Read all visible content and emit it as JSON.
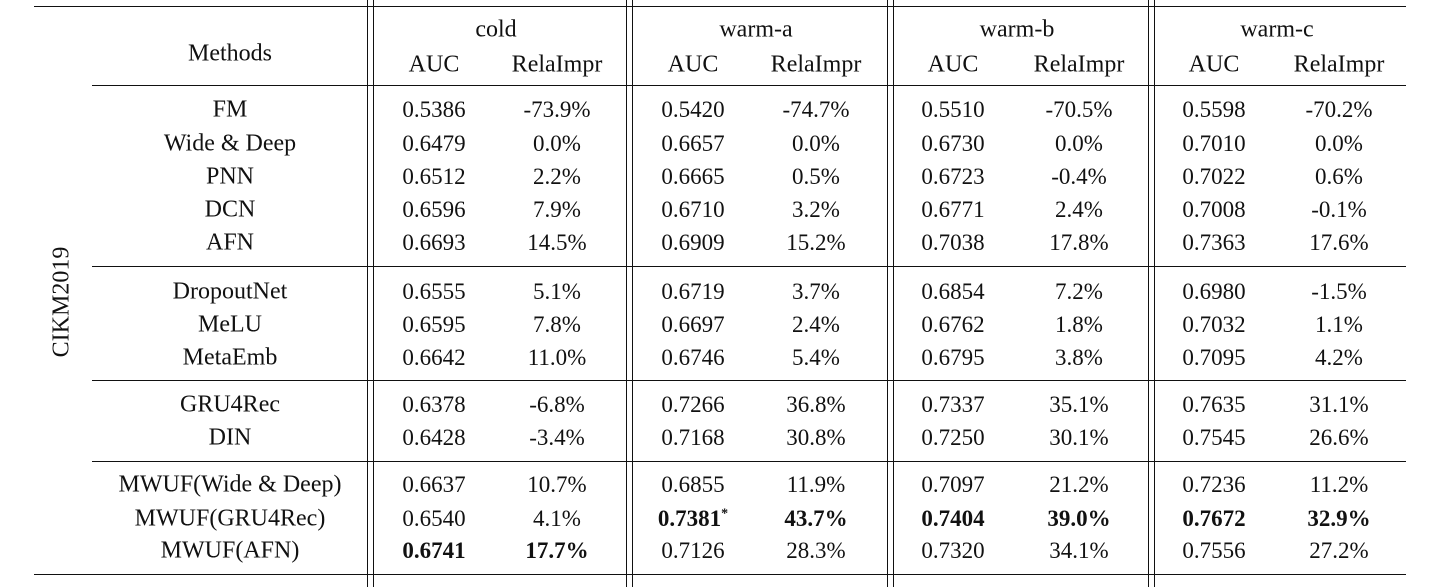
{
  "table": {
    "dataset_label": "CIKM2019",
    "methods_header": "Methods",
    "column_groups": [
      {
        "name": "cold",
        "cols": [
          "AUC",
          "RelaImpr"
        ]
      },
      {
        "name": "warm-a",
        "cols": [
          "AUC",
          "RelaImpr"
        ]
      },
      {
        "name": "warm-b",
        "cols": [
          "AUC",
          "RelaImpr"
        ]
      },
      {
        "name": "warm-c",
        "cols": [
          "AUC",
          "RelaImpr"
        ]
      }
    ],
    "rows": [
      {
        "method": "FM",
        "values": [
          "0.5386",
          "-73.9%",
          "0.5420",
          "-74.7%",
          "0.5510",
          "-70.5%",
          "0.5598",
          "-70.2%"
        ]
      },
      {
        "method": "Wide & Deep",
        "values": [
          "0.6479",
          "0.0%",
          "0.6657",
          "0.0%",
          "0.6730",
          "0.0%",
          "0.7010",
          "0.0%"
        ]
      },
      {
        "method": "PNN",
        "values": [
          "0.6512",
          "2.2%",
          "0.6665",
          "0.5%",
          "0.6723",
          "-0.4%",
          "0.7022",
          "0.6%"
        ]
      },
      {
        "method": "DCN",
        "values": [
          "0.6596",
          "7.9%",
          "0.6710",
          "3.2%",
          "0.6771",
          "2.4%",
          "0.7008",
          "-0.1%"
        ]
      },
      {
        "method": "AFN",
        "values": [
          "0.6693",
          "14.5%",
          "0.6909",
          "15.2%",
          "0.7038",
          "17.8%",
          "0.7363",
          "17.6%"
        ]
      },
      {
        "method": "DropoutNet",
        "values": [
          "0.6555",
          "5.1%",
          "0.6719",
          "3.7%",
          "0.6854",
          "7.2%",
          "0.6980",
          "-1.5%"
        ]
      },
      {
        "method": "MeLU",
        "values": [
          "0.6595",
          "7.8%",
          "0.6697",
          "2.4%",
          "0.6762",
          "1.8%",
          "0.7032",
          "1.1%"
        ]
      },
      {
        "method": "MetaEmb",
        "values": [
          "0.6642",
          "11.0%",
          "0.6746",
          "5.4%",
          "0.6795",
          "3.8%",
          "0.7095",
          "4.2%"
        ]
      },
      {
        "method": "GRU4Rec",
        "values": [
          "0.6378",
          "-6.8%",
          "0.7266",
          "36.8%",
          "0.7337",
          "35.1%",
          "0.7635",
          "31.1%"
        ]
      },
      {
        "method": "DIN",
        "values": [
          "0.6428",
          "-3.4%",
          "0.7168",
          "30.8%",
          "0.7250",
          "30.1%",
          "0.7545",
          "26.6%"
        ]
      },
      {
        "method": "MWUF(Wide & Deep)",
        "values": [
          "0.6637",
          "10.7%",
          "0.6855",
          "11.9%",
          "0.7097",
          "21.2%",
          "0.7236",
          "11.2%"
        ]
      },
      {
        "method": "MWUF(GRU4Rec)",
        "values": [
          "0.6540",
          "4.1%",
          "0.7381",
          "43.7%",
          "0.7404",
          "39.0%",
          "0.7672",
          "32.9%"
        ]
      },
      {
        "method": "MWUF(AFN)",
        "values": [
          "0.6741",
          "17.7%",
          "0.7126",
          "28.3%",
          "0.7320",
          "34.1%",
          "0.7556",
          "27.2%"
        ]
      }
    ],
    "bold_cells": [
      [
        11,
        2
      ],
      [
        11,
        3
      ],
      [
        11,
        4
      ],
      [
        11,
        5
      ],
      [
        11,
        6
      ],
      [
        11,
        7
      ],
      [
        12,
        0
      ],
      [
        12,
        1
      ]
    ],
    "star_cells": [
      [
        11,
        2
      ]
    ],
    "star_mark": "*"
  }
}
